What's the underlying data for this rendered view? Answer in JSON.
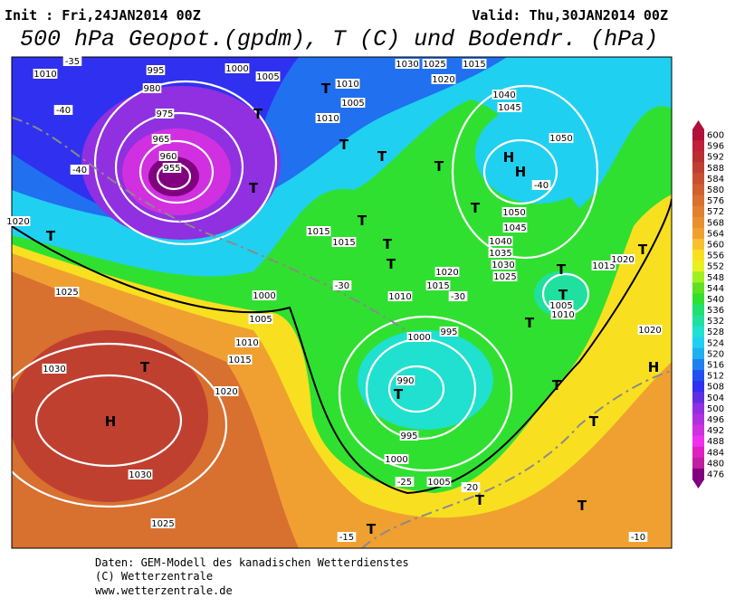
{
  "header": {
    "init": "Init : Fri,24JAN2014 00Z",
    "valid": "Valid: Thu,30JAN2014 00Z",
    "title": "500 hPa Geopot.(gpdm), T (C) und Bodendr. (hPa)"
  },
  "footer": {
    "lines": [
      "Daten: GEM-Modell des kanadischen Wetterdienstes",
      "(C) Wetterzentrale",
      "www.wetterzentrale.de"
    ]
  },
  "colorbar": {
    "labels": [
      "600",
      "596",
      "592",
      "588",
      "584",
      "580",
      "576",
      "572",
      "568",
      "564",
      "560",
      "556",
      "552",
      "548",
      "544",
      "540",
      "536",
      "532",
      "528",
      "524",
      "520",
      "516",
      "512",
      "508",
      "504",
      "500",
      "496",
      "492",
      "488",
      "484",
      "480",
      "476"
    ],
    "colors": [
      "#b0103a",
      "#c0203a",
      "#b83030",
      "#c04030",
      "#c85030",
      "#d06030",
      "#d87030",
      "#e08030",
      "#e89030",
      "#f0a030",
      "#f8c030",
      "#f8e020",
      "#e8f020",
      "#a0f020",
      "#60e020",
      "#30e030",
      "#20e070",
      "#20e0a0",
      "#20e0d0",
      "#20d0f0",
      "#20b0f0",
      "#2080f0",
      "#2050f0",
      "#3030f0",
      "#6030e0",
      "#9030e0",
      "#b030e0",
      "#d030e0",
      "#f030f0",
      "#e020c0",
      "#c020a0",
      "#800080"
    ]
  },
  "map_labels": [
    "995",
    "1010",
    "-35",
    "980",
    "975",
    "965",
    "960",
    "955",
    "1000",
    "1005",
    "1030",
    "1025",
    "1015",
    "1020",
    "1040",
    "1045",
    "1050",
    "H",
    "H",
    "-40",
    "1050",
    "1045",
    "1040",
    "1035",
    "1030",
    "1025",
    "1020",
    "1025",
    "1030",
    "H",
    "1030",
    "1025",
    "T",
    "1020",
    "1015",
    "1010",
    "1005",
    "1000",
    "995",
    "1000",
    "990",
    "T",
    "995",
    "1000",
    "1005",
    "-25",
    "-20",
    "T",
    "T",
    "T",
    "-15",
    "T",
    "1020",
    "H",
    "-10",
    "1015",
    "1020",
    "T",
    "T",
    "T",
    "1005",
    "1010",
    "T",
    "T",
    "1010",
    "1005",
    "1010",
    "T",
    "T",
    "T",
    "T",
    "T",
    "T",
    "T",
    "1015",
    "1015",
    "1010",
    "1015",
    "1020",
    "-30",
    "-30",
    "T",
    "-40",
    "-40",
    "T",
    "T",
    "T"
  ]
}
